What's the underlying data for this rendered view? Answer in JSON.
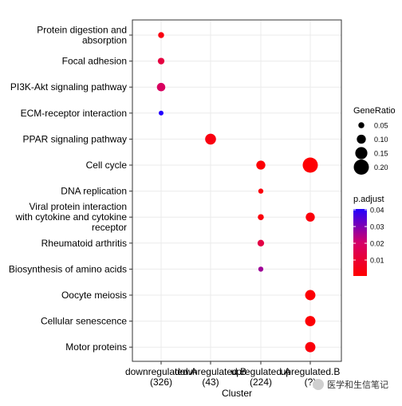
{
  "chart_data": {
    "type": "scatter",
    "subtype": "dot-plot",
    "xlabel": "Cluster",
    "x_categories": [
      {
        "label": "downregulated.A",
        "count": "(326)"
      },
      {
        "label": "downregulated.B",
        "count": "(43)"
      },
      {
        "label": "upregulated.A",
        "count": "(224)"
      },
      {
        "label": "upregulated.B",
        "count": "(?)"
      }
    ],
    "y_categories": [
      "Protein digestion and absorption",
      "Focal adhesion",
      "PI3K-Akt signaling pathway",
      "ECM-receptor interaction",
      "PPAR signaling pathway",
      "Cell cycle",
      "DNA replication",
      "Viral protein interaction with cytokine and cytokine receptor",
      "Rheumatoid arthritis",
      "Biosynthesis of amino acids",
      "Oocyte meiosis",
      "Cellular senescence",
      "Motor proteins"
    ],
    "y_label_lines": [
      [
        "Protein digestion and",
        "absorption"
      ],
      [
        "Focal adhesion"
      ],
      [
        "PI3K-Akt signaling pathway"
      ],
      [
        "ECM-receptor interaction"
      ],
      [
        "PPAR signaling pathway"
      ],
      [
        "Cell cycle"
      ],
      [
        "DNA replication"
      ],
      [
        "Viral protein interaction",
        "with cytokine and cytokine",
        "receptor"
      ],
      [
        "Rheumatoid arthritis"
      ],
      [
        "Biosynthesis of amino acids"
      ],
      [
        "Oocyte meiosis"
      ],
      [
        "Cellular senescence"
      ],
      [
        "Motor proteins"
      ]
    ],
    "points": [
      {
        "cluster": "downregulated.A",
        "pathway": "Protein digestion and absorption",
        "gene_ratio": 0.05,
        "p_adjust": 0.003
      },
      {
        "cluster": "downregulated.A",
        "pathway": "Focal adhesion",
        "gene_ratio": 0.06,
        "p_adjust": 0.012
      },
      {
        "cluster": "downregulated.A",
        "pathway": "PI3K-Akt signaling pathway",
        "gene_ratio": 0.09,
        "p_adjust": 0.018
      },
      {
        "cluster": "downregulated.A",
        "pathway": "ECM-receptor interaction",
        "gene_ratio": 0.03,
        "p_adjust": 0.04
      },
      {
        "cluster": "downregulated.B",
        "pathway": "PPAR signaling pathway",
        "gene_ratio": 0.13,
        "p_adjust": 0.003
      },
      {
        "cluster": "upregulated.A",
        "pathway": "Cell cycle",
        "gene_ratio": 0.1,
        "p_adjust": 0.001
      },
      {
        "cluster": "upregulated.A",
        "pathway": "DNA replication",
        "gene_ratio": 0.035,
        "p_adjust": 0.002
      },
      {
        "cluster": "upregulated.A",
        "pathway": "Viral protein interaction with cytokine and cytokine receptor",
        "gene_ratio": 0.05,
        "p_adjust": 0.002
      },
      {
        "cluster": "upregulated.A",
        "pathway": "Rheumatoid arthritis",
        "gene_ratio": 0.06,
        "p_adjust": 0.013
      },
      {
        "cluster": "upregulated.A",
        "pathway": "Biosynthesis of amino acids",
        "gene_ratio": 0.035,
        "p_adjust": 0.026
      },
      {
        "cluster": "upregulated.B",
        "pathway": "Cell cycle",
        "gene_ratio": 0.2,
        "p_adjust": 0.0005
      },
      {
        "cluster": "upregulated.B",
        "pathway": "Viral protein interaction with cytokine and cytokine receptor",
        "gene_ratio": 0.1,
        "p_adjust": 0.002
      },
      {
        "cluster": "upregulated.B",
        "pathway": "Oocyte meiosis",
        "gene_ratio": 0.12,
        "p_adjust": 0.001
      },
      {
        "cluster": "upregulated.B",
        "pathway": "Cellular senescence",
        "gene_ratio": 0.12,
        "p_adjust": 0.001
      },
      {
        "cluster": "upregulated.B",
        "pathway": "Motor proteins",
        "gene_ratio": 0.12,
        "p_adjust": 0.002
      }
    ],
    "size_legend": {
      "title": "GeneRatio",
      "values": [
        0.05,
        0.1,
        0.15,
        0.2
      ],
      "labels": [
        "0.05",
        "0.10",
        "0.15",
        "0.20"
      ]
    },
    "color_legend": {
      "title": "p.adjust",
      "range": [
        0,
        0.04
      ],
      "ticks": [
        0.04,
        0.03,
        0.02,
        0.01
      ],
      "tick_labels": [
        "0.04",
        "0.03",
        "0.02",
        "0.01"
      ],
      "low_color": "#ff0000",
      "high_color": "#0000ff"
    },
    "grid": true,
    "legend_position": "right"
  },
  "watermark": {
    "text": "医学和生信笔记"
  }
}
